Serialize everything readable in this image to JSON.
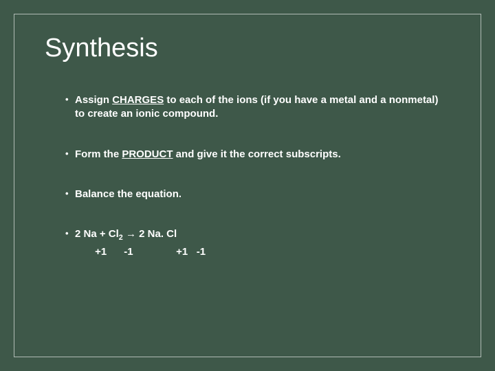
{
  "slide": {
    "background_color": "#3e5849",
    "border_color": "rgba(255,255,255,0.6)",
    "text_color": "#ffffff",
    "title": "Synthesis",
    "title_fontsize": 38,
    "body_fontsize": 15,
    "bullets": {
      "b1": {
        "pre": "Assign ",
        "strong": "CHARGES",
        "post": " to each of the ions (if you have a metal and a nonmetal) to create an ionic compound."
      },
      "b2": {
        "pre": "Form the ",
        "strong": "PRODUCT",
        "post": " and give it the correct subscripts."
      },
      "b3": {
        "text": "Balance the equation."
      },
      "b4": {
        "eq_coef1": "2 Na + Cl",
        "eq_sub1": "2",
        "eq_arrow": " → ",
        "eq_coef2": "2 Na. Cl",
        "charges_line": "       +1      -1               +1   -1"
      }
    }
  }
}
